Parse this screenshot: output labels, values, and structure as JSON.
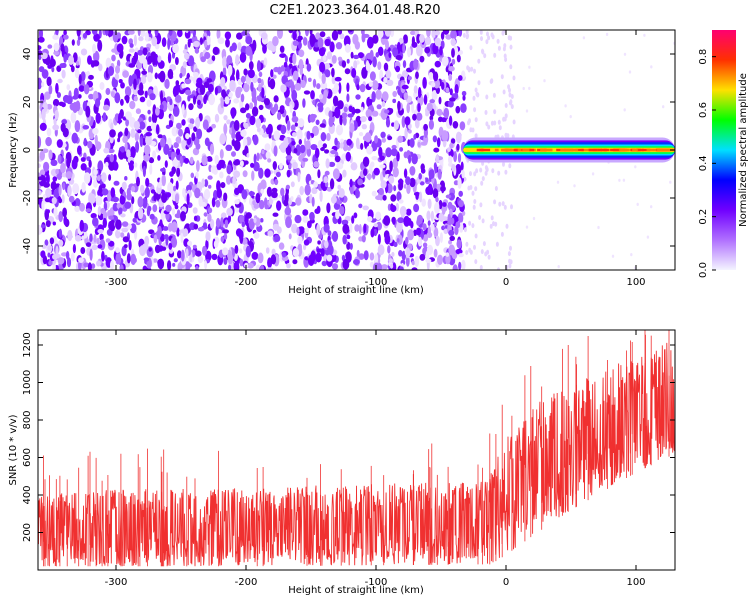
{
  "title": "C2E1.2023.364.01.48.R20",
  "colors": {
    "signal": "#f03030",
    "rainbow": [
      "#f4f4ff",
      "#b070ff",
      "#7000ff",
      "#0000ff",
      "#00e0ff",
      "#00ff00",
      "#ffe000",
      "#ff3000",
      "#ff0070"
    ]
  },
  "chart_data": [
    {
      "type": "heatmap",
      "name": "spectrogram",
      "xlabel": "Height of straight line (km)",
      "ylabel": "Frequency (Hz)",
      "xlim": [
        -360,
        130
      ],
      "ylim": [
        -50,
        50
      ],
      "xticks": [
        -300,
        -200,
        -100,
        0,
        100
      ],
      "xtick_labels": [
        "-300",
        "-200",
        "-100",
        "0",
        "100"
      ],
      "yticks": [
        -40,
        -20,
        0,
        20,
        40
      ],
      "ytick_labels": [
        "-40",
        "-20",
        "0",
        "20",
        "40"
      ],
      "noise_region_x": [
        -360,
        -32
      ],
      "signal_band": {
        "x_start": -33,
        "x_end": 130,
        "freq_center": 0,
        "freq_halfwidth": 2
      },
      "colorbar": {
        "label": "Normalized spectral amplitude",
        "range": [
          0,
          0.9
        ],
        "ticks": [
          0,
          0.2,
          0.4,
          0.6,
          0.8
        ],
        "tick_labels": [
          "0.0",
          "0.2",
          "0.4",
          "0.6",
          "0.8"
        ]
      }
    },
    {
      "type": "line",
      "name": "snr",
      "xlabel": "Height of straight line (km)",
      "ylabel": "SNR (10 * v/v)",
      "xlim": [
        -360,
        130
      ],
      "ylim": [
        0,
        1280
      ],
      "xticks": [
        -300,
        -200,
        -100,
        0,
        100
      ],
      "xtick_labels": [
        "-300",
        "-200",
        "-100",
        "0",
        "100"
      ],
      "yticks": [
        200,
        400,
        600,
        800,
        1000,
        1200
      ],
      "ytick_labels": [
        "200",
        "400",
        "600",
        "800",
        "1000",
        "1200"
      ],
      "envelope": [
        {
          "x": -360,
          "low": 20,
          "high": 400
        },
        {
          "x": -300,
          "low": 20,
          "high": 430
        },
        {
          "x": -200,
          "low": 20,
          "high": 440
        },
        {
          "x": -100,
          "low": 25,
          "high": 460
        },
        {
          "x": -20,
          "low": 30,
          "high": 470
        },
        {
          "x": -12,
          "low": 30,
          "high": 520
        },
        {
          "x": 0,
          "low": 80,
          "high": 720
        },
        {
          "x": 20,
          "low": 180,
          "high": 880
        },
        {
          "x": 50,
          "low": 320,
          "high": 1000
        },
        {
          "x": 80,
          "low": 440,
          "high": 1080
        },
        {
          "x": 100,
          "low": 520,
          "high": 1150
        },
        {
          "x": 130,
          "low": 620,
          "high": 1240
        }
      ]
    }
  ]
}
